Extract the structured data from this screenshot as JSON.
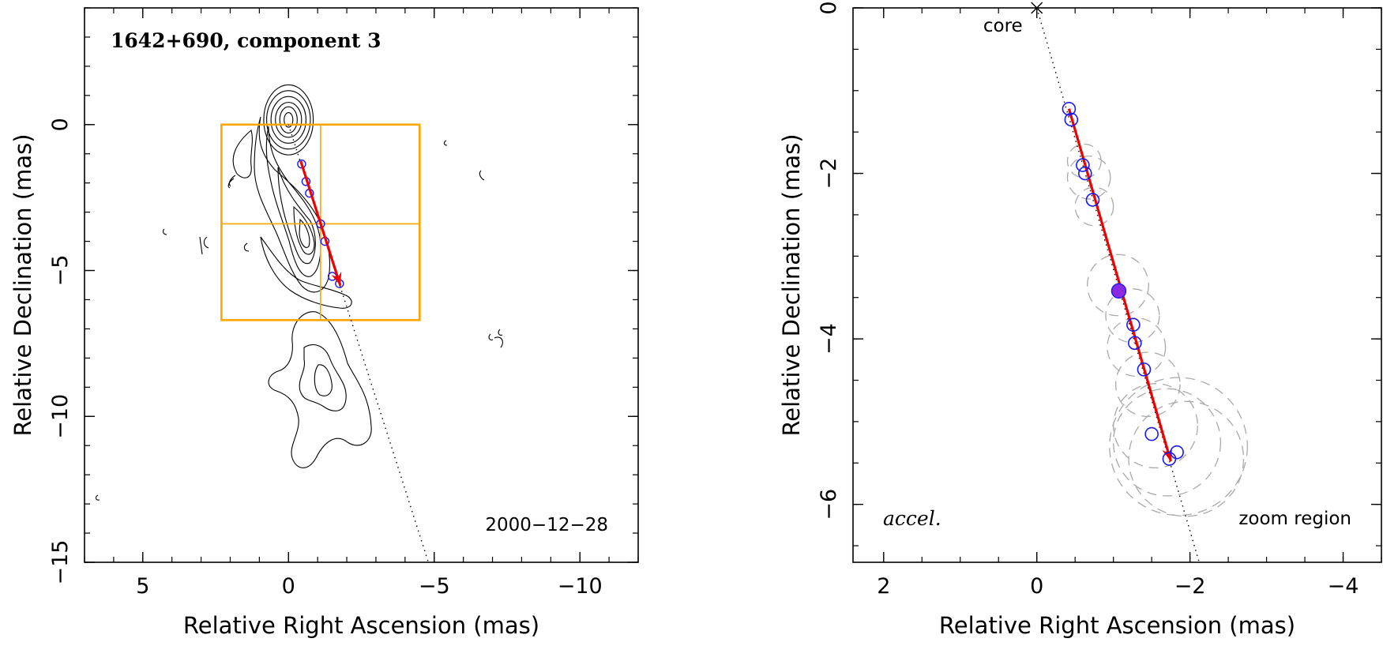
{
  "chart_data": [
    {
      "type": "contour",
      "panel": "left",
      "title": "1642+690, component 3",
      "epoch": "2000−12−28",
      "xlabel": "Relative Right Ascension (mas)",
      "ylabel": "Relative Declination (mas)",
      "xlim": [
        7,
        -12
      ],
      "ylim": [
        -15,
        4
      ],
      "xticks": [
        5,
        0,
        -5,
        -10
      ],
      "xtick_labels": [
        "5",
        "0",
        "−5",
        "−10"
      ],
      "yticks": [
        0,
        -5,
        -10,
        -15
      ],
      "ytick_labels": [
        "0",
        "−5",
        "−10",
        "−15"
      ],
      "core": {
        "x": 0,
        "y": 0
      },
      "contour_levels_core": [
        {
          "rx": 0.15,
          "ry": 0.25
        },
        {
          "rx": 0.3,
          "ry": 0.45
        },
        {
          "rx": 0.45,
          "ry": 0.6
        },
        {
          "rx": 0.6,
          "ry": 0.8
        },
        {
          "rx": 0.75,
          "ry": 1.0
        },
        {
          "rx": 0.85,
          "ry": 1.2
        }
      ],
      "zoom_box": {
        "x_range": [
          2.3,
          -4.5
        ],
        "y_range": [
          0,
          -6.7
        ]
      },
      "crosshair": {
        "x": -1.1,
        "y": -3.4
      },
      "trajectory_line": {
        "from": {
          "x": 0,
          "y": 0
        },
        "to": {
          "x": -4.8,
          "y": -15
        }
      },
      "motion_vector": {
        "from": {
          "x": -0.42,
          "y": -1.25
        },
        "to": {
          "x": -1.78,
          "y": -5.52
        }
      },
      "components": [
        {
          "x": -0.45,
          "y": -1.35
        },
        {
          "x": -0.6,
          "y": -1.95
        },
        {
          "x": -0.72,
          "y": -2.35
        },
        {
          "x": -1.1,
          "y": -3.4
        },
        {
          "x": -1.25,
          "y": -4.0
        },
        {
          "x": -1.5,
          "y": -5.2
        },
        {
          "x": -1.75,
          "y": -5.45
        }
      ]
    },
    {
      "type": "scatter",
      "panel": "right",
      "xlabel": "Relative Right Ascension (mas)",
      "ylabel": "Relative Declination (mas)",
      "xlim": [
        2.4,
        -4.5
      ],
      "ylim": [
        -6.7,
        0
      ],
      "xticks": [
        2,
        0,
        -2,
        -4
      ],
      "xtick_labels": [
        "2",
        "0",
        "−2",
        "−4"
      ],
      "yticks": [
        0,
        -2,
        -4,
        -6
      ],
      "ytick_labels": [
        "0",
        "−2",
        "−4",
        "−6"
      ],
      "core_label": "core",
      "core": {
        "x": 0,
        "y": 0
      },
      "fit_label": "accel.",
      "region_label": "zoom region",
      "trajectory_line": {
        "from": {
          "x": 0,
          "y": 0
        },
        "to": {
          "x": -2.12,
          "y": -6.7
        }
      },
      "motion_vector": {
        "from": {
          "x": -0.42,
          "y": -1.22
        },
        "to": {
          "x": -1.75,
          "y": -5.48
        }
      },
      "component_positions": [
        {
          "x": -0.42,
          "y": -1.22
        },
        {
          "x": -0.45,
          "y": -1.35
        },
        {
          "x": -0.6,
          "y": -1.9
        },
        {
          "x": -0.63,
          "y": -2.0
        },
        {
          "x": -0.73,
          "y": -2.32
        },
        {
          "x": -1.26,
          "y": -3.83
        },
        {
          "x": -1.28,
          "y": -4.05
        },
        {
          "x": -1.4,
          "y": -4.37
        },
        {
          "x": -1.5,
          "y": -5.15
        },
        {
          "x": -1.83,
          "y": -5.37
        },
        {
          "x": -1.73,
          "y": -5.45
        }
      ],
      "reference_epoch_position": {
        "x": -1.07,
        "y": -3.42
      },
      "uncertainty_circles": [
        {
          "x": -0.62,
          "y": -1.85,
          "r": 0.22
        },
        {
          "x": -0.68,
          "y": -2.05,
          "r": 0.28
        },
        {
          "x": -0.75,
          "y": -2.4,
          "r": 0.25
        },
        {
          "x": -1.06,
          "y": -3.35,
          "r": 0.4
        },
        {
          "x": -1.25,
          "y": -3.72,
          "r": 0.35
        },
        {
          "x": -1.3,
          "y": -4.1,
          "r": 0.38
        },
        {
          "x": -1.45,
          "y": -4.55,
          "r": 0.42
        },
        {
          "x": -1.55,
          "y": -5.05,
          "r": 0.55
        },
        {
          "x": -1.7,
          "y": -5.25,
          "r": 0.7
        },
        {
          "x": -1.85,
          "y": -5.3,
          "r": 0.9
        },
        {
          "x": -1.95,
          "y": -5.45,
          "r": 0.75
        }
      ]
    }
  ],
  "colors": {
    "vector": "#ee0000",
    "component": "#1a1aee",
    "reference_fill": "#8a2be2",
    "zoom_box": "#ffa500",
    "uncertainty": "#aaaaaa",
    "contour": "#000000"
  }
}
